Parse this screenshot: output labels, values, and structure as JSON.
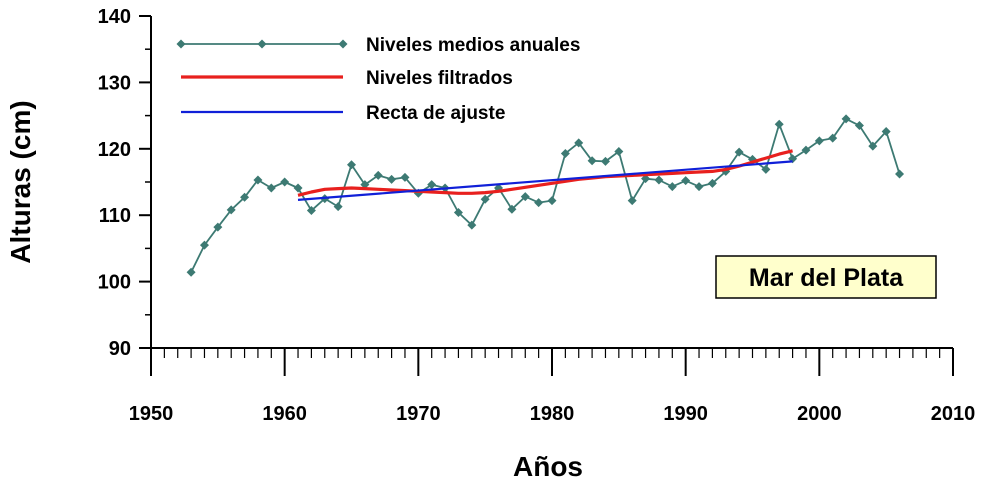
{
  "chart_data": {
    "type": "line",
    "title": "",
    "xlabel": "Años",
    "ylabel": "Alturas (cm)",
    "xlim": [
      1950,
      2010
    ],
    "ylim": [
      90,
      140
    ],
    "x_ticks": [
      1950,
      1960,
      1970,
      1980,
      1990,
      2000,
      2010
    ],
    "y_ticks": [
      90,
      100,
      110,
      120,
      130,
      140
    ],
    "grid": false,
    "legend_position": "top-left",
    "annotation": "Mar del Plata",
    "series": [
      {
        "name": "Niveles medios anuales",
        "color": "#3d7a73",
        "marker": "diamond",
        "x": [
          1953,
          1954,
          1955,
          1956,
          1957,
          1958,
          1959,
          1960,
          1961,
          1962,
          1963,
          1964,
          1965,
          1966,
          1967,
          1968,
          1969,
          1970,
          1971,
          1972,
          1973,
          1974,
          1975,
          1976,
          1977,
          1978,
          1979,
          1980,
          1981,
          1982,
          1983,
          1984,
          1985,
          1986,
          1987,
          1988,
          1989,
          1990,
          1991,
          1992,
          1993,
          1994,
          1995,
          1996,
          1997,
          1998,
          1999,
          2000,
          2001,
          2002,
          2003,
          2004,
          2005,
          2006
        ],
        "y": [
          101.4,
          105.5,
          108.2,
          110.8,
          112.7,
          115.3,
          114.1,
          115.0,
          114.1,
          110.7,
          112.5,
          111.3,
          117.6,
          114.6,
          116.0,
          115.4,
          115.7,
          113.3,
          114.6,
          114.1,
          110.4,
          108.5,
          112.4,
          114.1,
          110.9,
          112.8,
          111.9,
          112.2,
          119.3,
          120.9,
          118.2,
          118.1,
          119.6,
          112.2,
          115.5,
          115.3,
          114.3,
          115.2,
          114.3,
          114.8,
          116.6,
          119.5,
          118.4,
          116.9,
          123.7,
          118.5,
          119.8,
          121.2,
          121.6,
          124.5,
          123.5,
          120.4,
          122.6,
          116.2
        ]
      },
      {
        "name": "Niveles filtrados",
        "color": "#e8201e",
        "marker": "none",
        "x": [
          1961,
          1962,
          1963,
          1964,
          1965,
          1966,
          1967,
          1968,
          1969,
          1970,
          1971,
          1972,
          1973,
          1974,
          1975,
          1976,
          1977,
          1978,
          1979,
          1980,
          1981,
          1982,
          1983,
          1984,
          1985,
          1986,
          1987,
          1988,
          1989,
          1990,
          1991,
          1992,
          1993,
          1994,
          1995,
          1996,
          1997,
          1998
        ],
        "y": [
          113.0,
          113.5,
          113.9,
          114.0,
          114.1,
          114.0,
          113.9,
          113.8,
          113.7,
          113.6,
          113.5,
          113.4,
          113.3,
          113.3,
          113.4,
          113.6,
          113.9,
          114.2,
          114.5,
          114.8,
          115.1,
          115.4,
          115.6,
          115.8,
          115.9,
          116.0,
          116.1,
          116.2,
          116.3,
          116.4,
          116.5,
          116.6,
          116.9,
          117.4,
          118.0,
          118.6,
          119.2,
          119.7
        ]
      },
      {
        "name": "Recta de ajuste",
        "color": "#1020d8",
        "marker": "none",
        "x": [
          1961,
          1998
        ],
        "y": [
          112.3,
          118.1
        ]
      }
    ]
  }
}
